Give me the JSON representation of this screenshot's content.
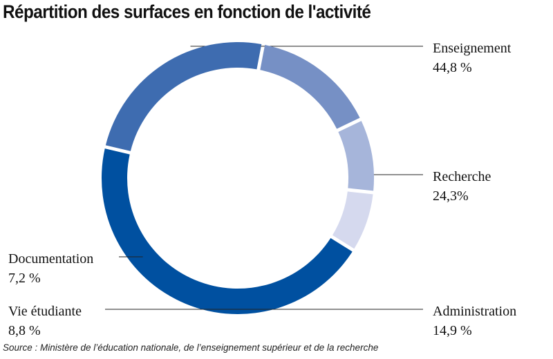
{
  "chart_data": {
    "type": "pie",
    "donut": true,
    "title": "Répartition des surfaces en fonction de l'activité",
    "slices": [
      {
        "label": "Enseignement",
        "value": 44.8,
        "value_text": "44,8 %",
        "color": "#0050a0"
      },
      {
        "label": "Recherche",
        "value": 24.3,
        "value_text": "24,3%",
        "color": "#3e6cb0"
      },
      {
        "label": "Administration",
        "value": 14.9,
        "value_text": "14,9 %",
        "color": "#7690c5"
      },
      {
        "label": "Vie étudiante",
        "value": 8.8,
        "value_text": "8,8 %",
        "color": "#a6b5da"
      },
      {
        "label": "Documentation",
        "value": 7.2,
        "value_text": "7,2 %",
        "color": "#d5d9ee"
      }
    ],
    "source": "Source : Ministère de l’éducation nationale, de l’enseignement supérieur et de la recherche"
  }
}
